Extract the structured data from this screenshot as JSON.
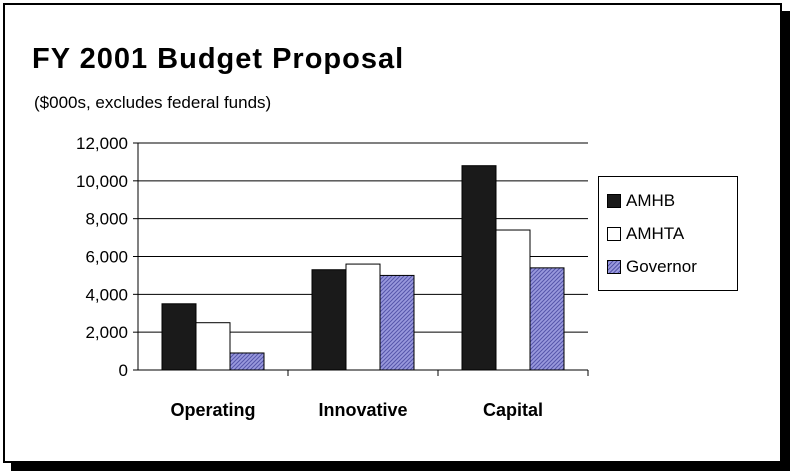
{
  "title": "FY 2001 Budget Proposal",
  "subtitle": "($000s, excludes federal funds)",
  "chart_data": {
    "type": "bar",
    "categories": [
      "Operating",
      "Innovative",
      "Capital"
    ],
    "series": [
      {
        "name": "AMHB",
        "values": [
          3500,
          5300,
          10800
        ],
        "color": "#1a1a1a"
      },
      {
        "name": "AMHTA",
        "values": [
          2500,
          5600,
          7400
        ],
        "color": "#ffffff"
      },
      {
        "name": "Governor",
        "values": [
          900,
          5000,
          5400
        ],
        "color": "#9999dd"
      }
    ],
    "ylim": [
      0,
      12000
    ],
    "yticks": [
      "0",
      "2,000",
      "4,000",
      "6,000",
      "8,000",
      "10,000",
      "12,000"
    ],
    "grid": true,
    "legend_position": "right"
  }
}
